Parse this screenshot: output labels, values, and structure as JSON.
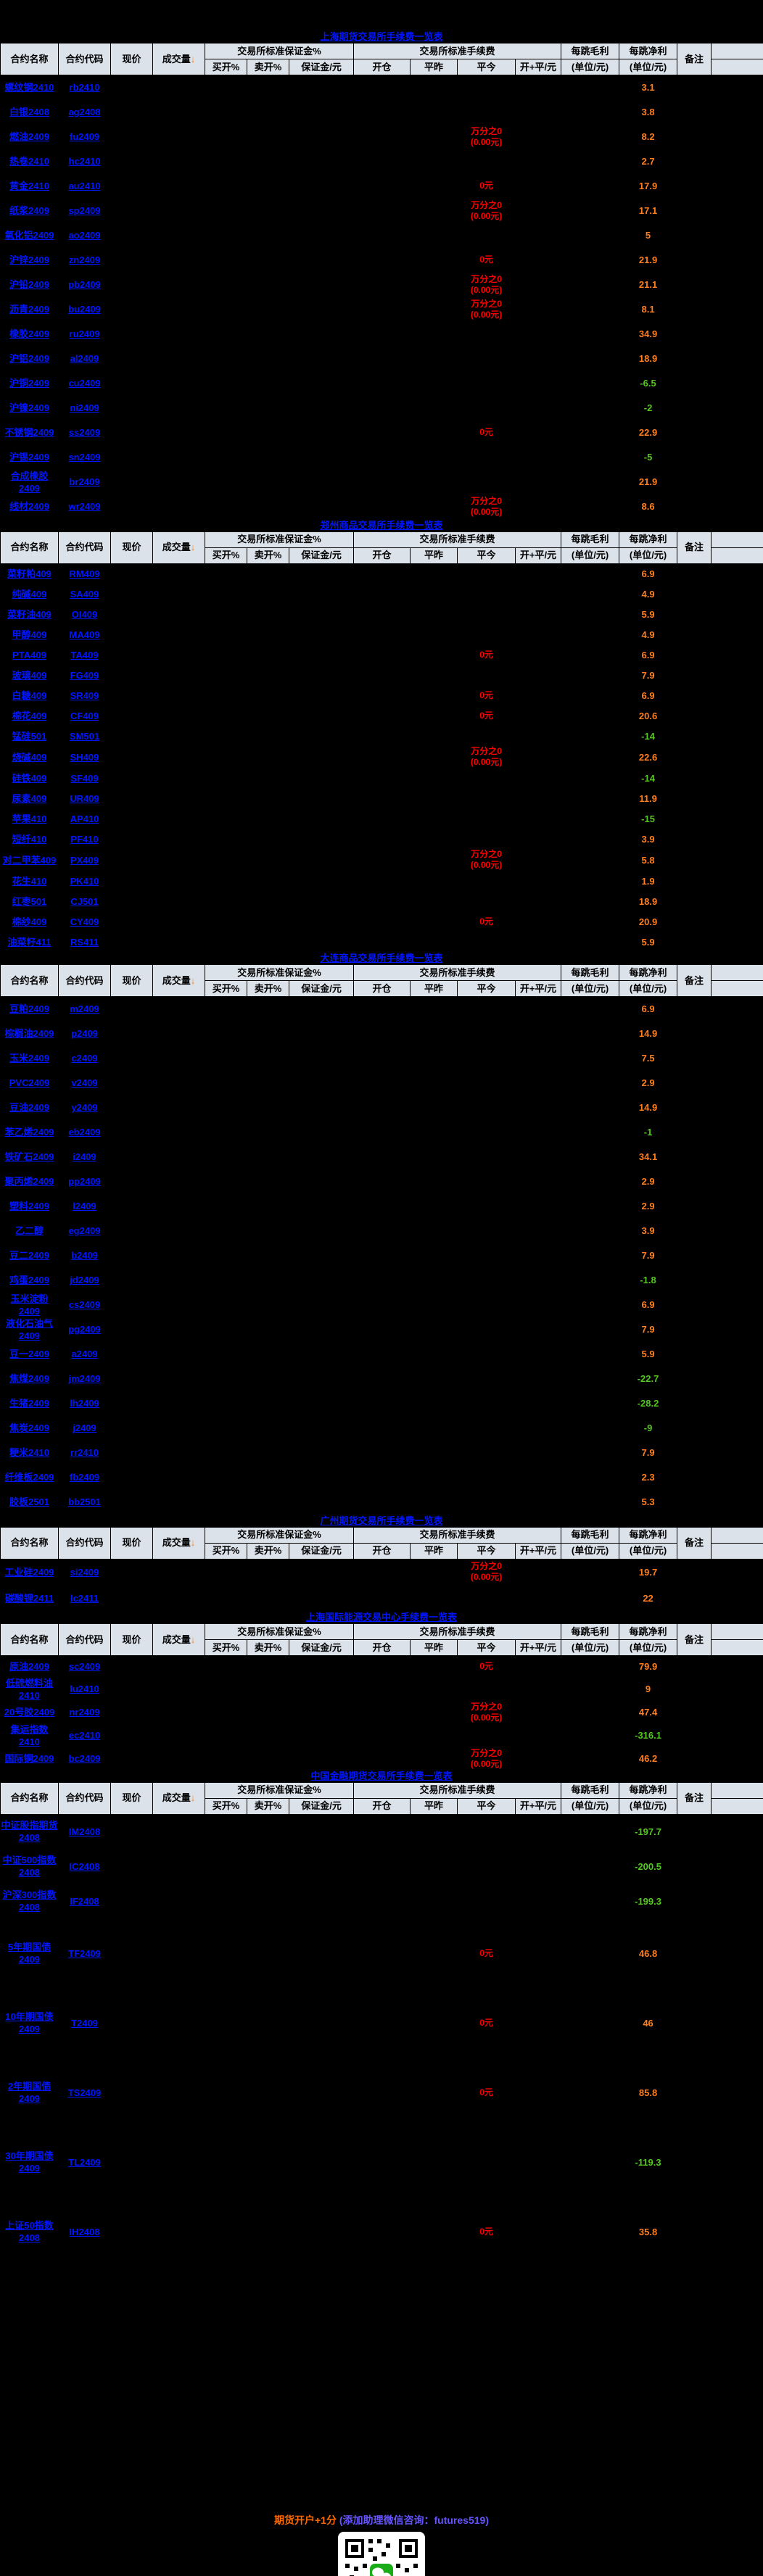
{
  "table_header": {
    "name": "合约名称",
    "code": "合约代码",
    "price": "现价",
    "volume": "成交量",
    "volume_arrow": "↓",
    "margin_group": "交易所标准保证金%",
    "buy_open": "买开%",
    "sell_open": "卖开%",
    "margin_yuan": "保证金/元",
    "fee_group": "交易所标准手续费",
    "open": "开仓",
    "close_yesterday": "平昨",
    "close_today": "平今",
    "open_close": "开+平/元",
    "gross_per_tick": "每跳毛利",
    "gross_unit": "(单位/元)",
    "net_per_tick": "每跳净利",
    "net_unit": "(单位/元)",
    "remark": "备注"
  },
  "colors": {
    "link_blue": "#0016ff",
    "fee_red": "#ff0000",
    "net_positive_orange": "#ff7f1e",
    "net_negative_green": "#54c61e",
    "header_bg": "#dbe2ea",
    "page_bg": "#000000"
  },
  "sections": [
    {
      "title": "上海期货交易所手续费一览表",
      "rows": [
        {
          "name": "螺纹钢2410",
          "code": "rb2410",
          "close_today": [],
          "net": "3.1"
        },
        {
          "name": "白银2408",
          "code": "ag2408",
          "close_today": [],
          "net": "3.8"
        },
        {
          "name": "燃油2409",
          "code": "fu2409",
          "close_today": [
            "万分之0",
            "(0.00元)"
          ],
          "net": "8.2"
        },
        {
          "name": "热卷2410",
          "code": "hc2410",
          "close_today": [],
          "net": "2.7"
        },
        {
          "name": "黄金2410",
          "code": "au2410",
          "close_today": [
            "0元"
          ],
          "net": "17.9"
        },
        {
          "name": "纸浆2409",
          "code": "sp2409",
          "close_today": [
            "万分之0",
            "(0.00元)"
          ],
          "net": "17.1"
        },
        {
          "name": "氧化铝2409",
          "code": "ao2409",
          "close_today": [],
          "net": "5"
        },
        {
          "name": "沪锌2409",
          "code": "zn2409",
          "close_today": [
            "0元"
          ],
          "net": "21.9"
        },
        {
          "name": "沪铅2409",
          "code": "pb2409",
          "close_today": [
            "万分之0",
            "(0.00元)"
          ],
          "net": "21.1"
        },
        {
          "name": "沥青2409",
          "code": "bu2409",
          "close_today": [
            "万分之0",
            "(0.00元)"
          ],
          "net": "8.1"
        },
        {
          "name": "橡胶2409",
          "code": "ru2409",
          "close_today": [],
          "net": "34.9"
        },
        {
          "name": "沪铝2409",
          "code": "al2409",
          "close_today": [],
          "net": "18.9"
        },
        {
          "name": "沪铜2409",
          "code": "cu2409",
          "close_today": [],
          "net": "-6.5"
        },
        {
          "name": "沪镍2409",
          "code": "ni2409",
          "close_today": [],
          "net": "-2"
        },
        {
          "name": "不锈钢2409",
          "code": "ss2409",
          "close_today": [
            "0元"
          ],
          "net": "22.9"
        },
        {
          "name": "沪锡2409",
          "code": "sn2409",
          "close_today": [],
          "net": "-5"
        },
        {
          "name": "合成橡胶2409",
          "code": "br2409",
          "close_today": [],
          "net": "21.9"
        },
        {
          "name": "线材2409",
          "code": "wr2409",
          "close_today": [
            "万分之0",
            "(0.00元)"
          ],
          "net": "8.6"
        }
      ]
    },
    {
      "title": "郑州商品交易所手续费一览表",
      "rows": [
        {
          "name": "菜籽粕409",
          "code": "RM409",
          "close_today": [],
          "net": "6.9"
        },
        {
          "name": "纯碱409",
          "code": "SA409",
          "close_today": [],
          "net": "4.9"
        },
        {
          "name": "菜籽油409",
          "code": "OI409",
          "close_today": [],
          "net": "5.9"
        },
        {
          "name": "甲醇409",
          "code": "MA409",
          "close_today": [],
          "net": "4.9"
        },
        {
          "name": "PTA409",
          "code": "TA409",
          "close_today": [
            "0元"
          ],
          "net": "6.9"
        },
        {
          "name": "玻璃409",
          "code": "FG409",
          "close_today": [],
          "net": "7.9"
        },
        {
          "name": "白糖409",
          "code": "SR409",
          "close_today": [
            "0元"
          ],
          "net": "6.9"
        },
        {
          "name": "棉花409",
          "code": "CF409",
          "close_today": [
            "0元"
          ],
          "net": "20.6"
        },
        {
          "name": "锰硅501",
          "code": "SM501",
          "close_today": [],
          "net": "-14"
        },
        {
          "name": "烧碱409",
          "code": "SH409",
          "close_today": [
            "万分之0",
            "(0.00元)"
          ],
          "net": "22.6"
        },
        {
          "name": "硅铁409",
          "code": "SF409",
          "close_today": [],
          "net": "-14"
        },
        {
          "name": "尿素409",
          "code": "UR409",
          "close_today": [],
          "net": "11.9"
        },
        {
          "name": "苹果410",
          "code": "AP410",
          "close_today": [],
          "net": "-15"
        },
        {
          "name": "短纤410",
          "code": "PF410",
          "close_today": [],
          "net": "3.9"
        },
        {
          "name": "对二甲苯409",
          "code": "PX409",
          "close_today": [
            "万分之0",
            "(0.00元)"
          ],
          "net": "5.8"
        },
        {
          "name": "花生410",
          "code": "PK410",
          "close_today": [],
          "net": "1.9"
        },
        {
          "name": "红枣501",
          "code": "CJ501",
          "close_today": [],
          "net": "18.9"
        },
        {
          "name": "棉纱409",
          "code": "CY409",
          "close_today": [
            "0元"
          ],
          "net": "20.9"
        },
        {
          "name": "油菜籽411",
          "code": "RS411",
          "close_today": [],
          "net": "5.9"
        }
      ]
    },
    {
      "title": "大连商品交易所手续费一览表",
      "rows": [
        {
          "name": "豆粕2409",
          "code": "m2409",
          "close_today": [],
          "net": "6.9"
        },
        {
          "name": "棕榈油2409",
          "code": "p2409",
          "close_today": [],
          "net": "14.9"
        },
        {
          "name": "玉米2409",
          "code": "c2409",
          "close_today": [],
          "net": "7.5"
        },
        {
          "name": "PVC2409",
          "code": "v2409",
          "close_today": [],
          "net": "2.9"
        },
        {
          "name": "豆油2409",
          "code": "y2409",
          "close_today": [],
          "net": "14.9"
        },
        {
          "name": "苯乙烯2409",
          "code": "eb2409",
          "close_today": [],
          "net": "-1"
        },
        {
          "name": "铁矿石2409",
          "code": "i2409",
          "close_today": [],
          "net": "34.1"
        },
        {
          "name": "聚丙烯2409",
          "code": "pp2409",
          "close_today": [],
          "net": "2.9"
        },
        {
          "name": "塑料2409",
          "code": "l2409",
          "close_today": [],
          "net": "2.9"
        },
        {
          "name": "乙二醇",
          "code": "eg2409",
          "close_today": [],
          "net": "3.9"
        },
        {
          "name": "豆二2409",
          "code": "b2409",
          "close_today": [],
          "net": "7.9"
        },
        {
          "name": "鸡蛋2409",
          "code": "jd2409",
          "close_today": [],
          "net": "-1.8"
        },
        {
          "name": "玉米淀粉2409",
          "code": "cs2409",
          "close_today": [],
          "net": "6.9"
        },
        {
          "name": "液化石油气2409",
          "code": "pg2409",
          "close_today": [],
          "net": "7.9"
        },
        {
          "name": "豆一2409",
          "code": "a2409",
          "close_today": [],
          "net": "5.9"
        },
        {
          "name": "焦煤2409",
          "code": "jm2409",
          "close_today": [],
          "net": "-22.7"
        },
        {
          "name": "生猪2409",
          "code": "lh2409",
          "close_today": [],
          "net": "-28.2"
        },
        {
          "name": "焦炭2409",
          "code": "j2409",
          "close_today": [],
          "net": "-9"
        },
        {
          "name": "粳米2410",
          "code": "rr2410",
          "close_today": [],
          "net": "7.9"
        },
        {
          "name": "纤维板2409",
          "code": "fb2409",
          "close_today": [],
          "net": "2.3"
        },
        {
          "name": "胶板2501",
          "code": "bb2501",
          "close_today": [],
          "net": "5.3"
        }
      ]
    },
    {
      "title": "广州期货交易所手续费一览表",
      "rows": [
        {
          "name": "工业硅2409",
          "code": "si2409",
          "close_today": [
            "万分之0",
            "(0.00元)"
          ],
          "net": "19.7"
        },
        {
          "name": "碳酸锂2411",
          "code": "lc2411",
          "close_today": [],
          "net": "22"
        }
      ]
    },
    {
      "title": "上海国际能源交易中心手续费一览表",
      "rows": [
        {
          "name": "原油2409",
          "code": "sc2409",
          "close_today": [
            "0元"
          ],
          "net": "79.9"
        },
        {
          "name": "低硫燃料油2410",
          "code": "lu2410",
          "close_today": [],
          "net": "9"
        },
        {
          "name": "20号胶2409",
          "code": "nr2409",
          "close_today": [
            "万分之0",
            "(0.00元)"
          ],
          "net": "47.4"
        },
        {
          "name": "集运指数2410",
          "code": "ec2410",
          "close_today": [],
          "net": "-316.1"
        },
        {
          "name": "国际铜2409",
          "code": "bc2409",
          "close_today": [
            "万分之0",
            "(0.00元)"
          ],
          "net": "46.2"
        }
      ]
    },
    {
      "title": "中国金融期货交易所手续费一览表",
      "rows": [
        {
          "name": "中证股指期货2408",
          "code": "IM2408",
          "close_today": [],
          "net": "-197.7"
        },
        {
          "name": "中证500指数2408",
          "code": "IC2408",
          "close_today": [],
          "net": "-200.5"
        },
        {
          "name": "沪深300指数2408",
          "code": "IF2408",
          "close_today": [],
          "net": "-199.3"
        },
        {
          "name": "5年期国债2409",
          "code": "TF2409",
          "close_today": [
            "0元"
          ],
          "net": "46.8"
        },
        {
          "name": "10年期国债2409",
          "code": "T2409",
          "close_today": [
            "0元"
          ],
          "net": "46"
        },
        {
          "name": "2年期国债2409",
          "code": "TS2409",
          "close_today": [
            "0元"
          ],
          "net": "85.8"
        },
        {
          "name": "30年期国债2409",
          "code": "TL2409",
          "close_today": [],
          "net": "-119.3"
        },
        {
          "name": "上证50指数2408",
          "code": "IH2408",
          "close_today": [
            "0元"
          ],
          "net": "35.8"
        }
      ]
    }
  ],
  "footer": {
    "promo": "期货开户+1分",
    "promo2": "(添加助理微信咨询：futures519)"
  }
}
